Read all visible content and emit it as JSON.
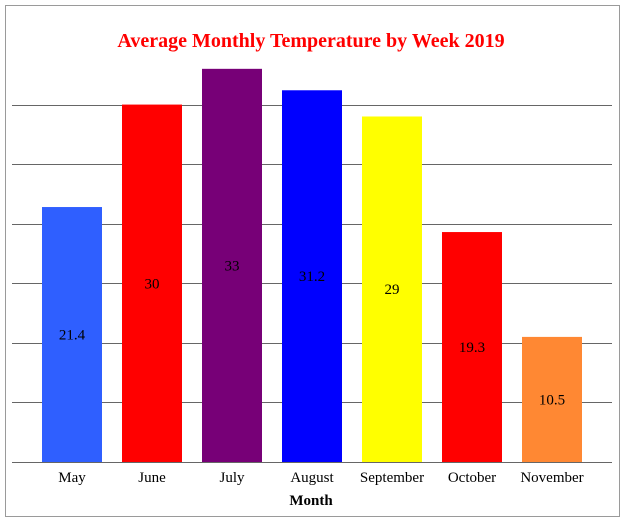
{
  "chart_data": {
    "type": "bar",
    "title": "Average Monthly Temperature by Week 2019",
    "xlabel": "Month",
    "ylabel": "",
    "categories": [
      "May",
      "June",
      "July",
      "August",
      "September",
      "October",
      "November"
    ],
    "values": [
      21.4,
      30,
      33,
      31.2,
      29,
      19.3,
      10.5
    ],
    "bar_colors": [
      "#2f5fff",
      "#ff0000",
      "#770077",
      "#0000ff",
      "#ffff00",
      "#ff0000",
      "#ff8833"
    ],
    "ylim": [
      0,
      35
    ],
    "grid": true,
    "colors": {
      "title": "#ff0000",
      "grid": "#666666",
      "frame": "#9a9a9a"
    }
  }
}
